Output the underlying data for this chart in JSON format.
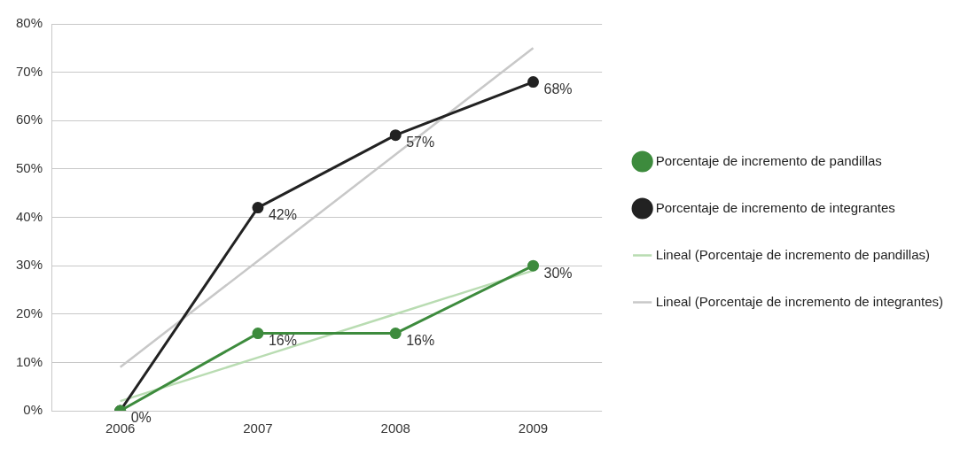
{
  "chart_data": {
    "type": "line",
    "categories": [
      "2006",
      "2007",
      "2008",
      "2009"
    ],
    "series": [
      {
        "name": "Porcentaje de incremento de pandillas",
        "color": "#3d8b3d",
        "values": [
          0,
          16,
          16,
          30
        ],
        "value_labels": [
          "0%",
          "16%",
          "16%",
          "30%"
        ],
        "marker": "circle"
      },
      {
        "name": "Porcentaje de incremento de integrantes",
        "color": "#222222",
        "values": [
          0,
          42,
          57,
          68
        ],
        "value_labels": [
          null,
          "42%",
          "57%",
          "68%"
        ],
        "marker": "circle"
      },
      {
        "name": "Lineal (Porcentaje de incremento de pandillas)",
        "color": "#b9dcb2",
        "values": [
          2,
          11,
          20,
          29
        ],
        "marker": "none"
      },
      {
        "name": "Lineal (Porcentaje de incremento de integrantes)",
        "color": "#c8c8c8",
        "values": [
          9,
          31,
          53,
          75
        ],
        "marker": "none"
      }
    ],
    "ylim": [
      0,
      80
    ],
    "yticks": [
      {
        "value": 0,
        "label": "0%"
      },
      {
        "value": 10,
        "label": "10%"
      },
      {
        "value": 20,
        "label": "20%"
      },
      {
        "value": 30,
        "label": "30%"
      },
      {
        "value": 40,
        "label": "40%"
      },
      {
        "value": 50,
        "label": "50%"
      },
      {
        "value": 60,
        "label": "60%"
      },
      {
        "value": 70,
        "label": "70%"
      },
      {
        "value": 80,
        "label": "80%"
      }
    ],
    "grid": "y",
    "legend": "right"
  }
}
